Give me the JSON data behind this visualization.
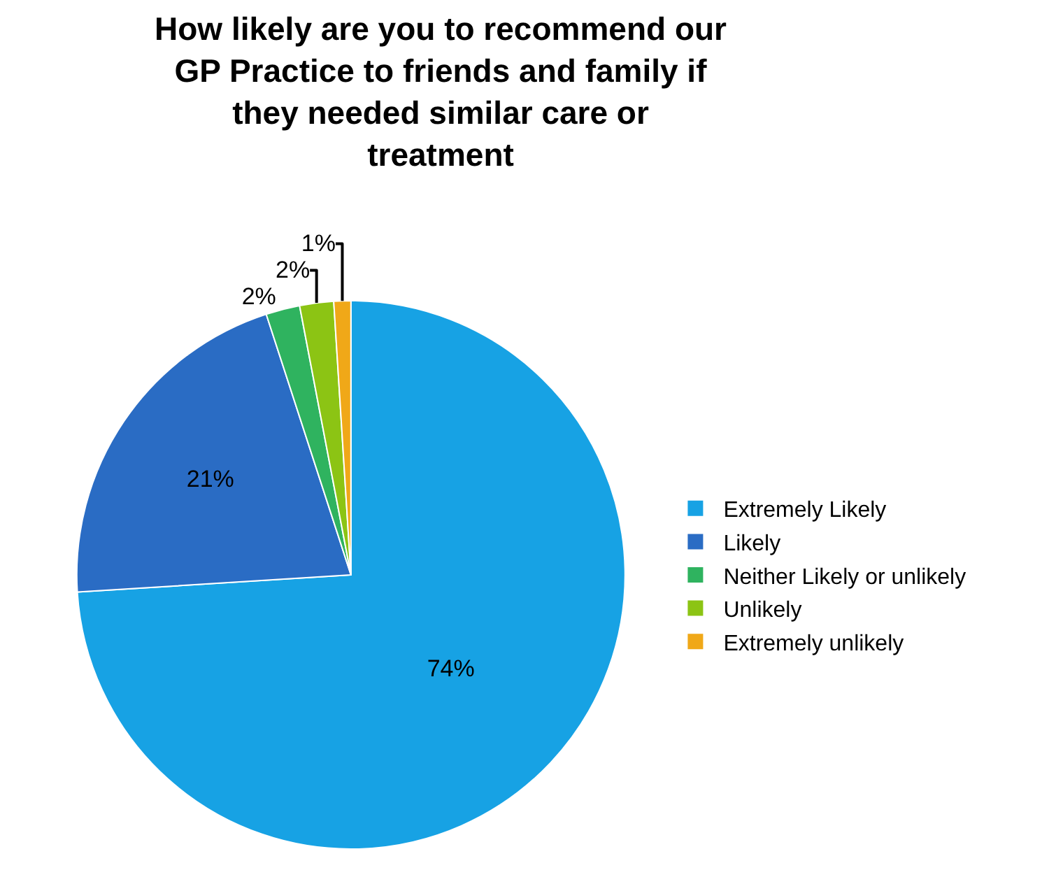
{
  "chart_data": {
    "type": "pie",
    "title": "How likely are you to recommend our GP Practice to friends and family if they needed similar care or treatment",
    "categories": [
      "Extremely Likely",
      "Likely",
      "Neither Likely or unlikely",
      "Unlikely",
      "Extremely unlikely"
    ],
    "values": [
      74,
      21,
      2,
      2,
      1
    ],
    "value_labels": [
      "74%",
      "21%",
      "2%",
      "2%",
      "1%"
    ],
    "colors": [
      "#17a2e4",
      "#2a6cc4",
      "#2fb35f",
      "#8cc414",
      "#f0a818"
    ],
    "legend": "right"
  }
}
